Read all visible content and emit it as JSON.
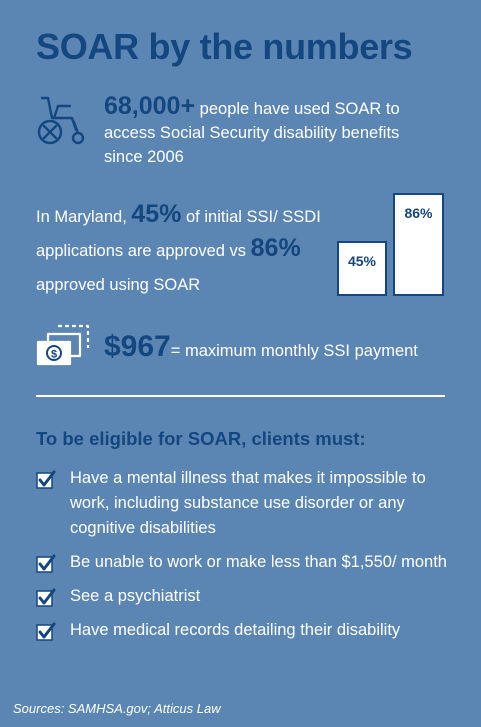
{
  "title": "SOAR by the numbers",
  "stats": {
    "users": {
      "number": "68,000+",
      "text": " people have used SOAR to access Social Security disability benefits since 2006",
      "icon": "wheelchair-icon"
    },
    "maryland": {
      "prefix": "In Maryland, ",
      "pct_initial": "45%",
      "mid": " of initial SSI/ SSDI applications are approved vs ",
      "pct_soar": "86%",
      "suffix": " approved using SOAR"
    },
    "payment": {
      "amount": "$967",
      "text": "= maximum monthly SSI payment",
      "icon": "money-icon"
    }
  },
  "chart_data": {
    "type": "bar",
    "categories": [
      "",
      ""
    ],
    "values": [
      45,
      86
    ],
    "data_labels": [
      "45%",
      "86%"
    ],
    "ylim": [
      0,
      100
    ]
  },
  "eligibility": {
    "heading": "To be eligible for SOAR, clients must:",
    "items": [
      "Have a mental illness that makes it impossible to work, including substance use disorder or any cognitive disabilities",
      "Be unable to work or make less than $1,550/ month",
      "See a psychiatrist",
      "Have medical records detailing their disability"
    ],
    "icon": "checkbox-checked-icon"
  },
  "sources": "Sources: SAMHSA.gov; Atticus Law",
  "colors": {
    "background": "#5b86b4",
    "accent": "#14467f",
    "text": "#ffffff"
  }
}
